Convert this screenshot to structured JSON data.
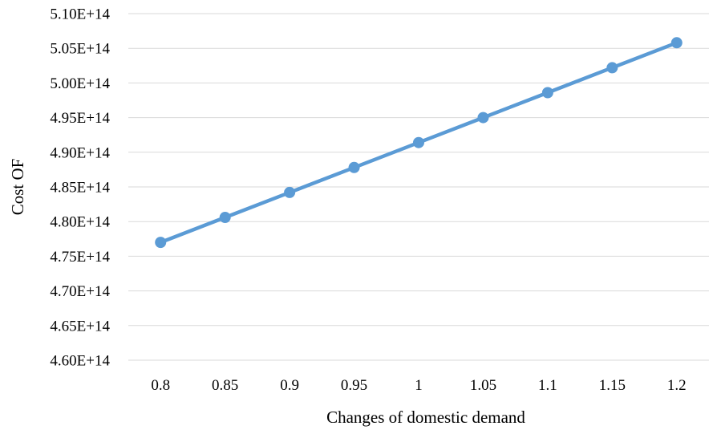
{
  "chart_data": {
    "type": "line",
    "title": "",
    "xlabel": "Changes of domestic demand",
    "ylabel": "Cost OF",
    "categories": [
      "0.8",
      "0.85",
      "0.9",
      "0.95",
      "1",
      "1.05",
      "1.1",
      "1.15",
      "1.2"
    ],
    "series": [
      {
        "values": [
          477000000000000.0,
          480600000000000.0,
          484200000000000.0,
          487800000000000.0,
          491400000000000.0,
          495000000000000.0,
          498600000000000.0,
          502200000000000.0,
          505800000000000.0
        ]
      }
    ],
    "ylim": [
      460000000000000.0,
      510000000000000.0
    ],
    "yticks": [
      460000000000000.0,
      465000000000000.0,
      470000000000000.0,
      475000000000000.0,
      480000000000000.0,
      485000000000000.0,
      490000000000000.0,
      495000000000000.0,
      500000000000000.0,
      505000000000000.0,
      510000000000000.0
    ],
    "ytick_labels": [
      "4.60E+14",
      "4.65E+14",
      "4.70E+14",
      "4.75E+14",
      "4.80E+14",
      "4.85E+14",
      "4.90E+14",
      "4.95E+14",
      "5.00E+14",
      "5.05E+14",
      "5.10E+14"
    ],
    "grid": true,
    "legend": "none",
    "colors": {
      "series": "#5b9bd5",
      "grid": "#d9d9d9"
    }
  }
}
